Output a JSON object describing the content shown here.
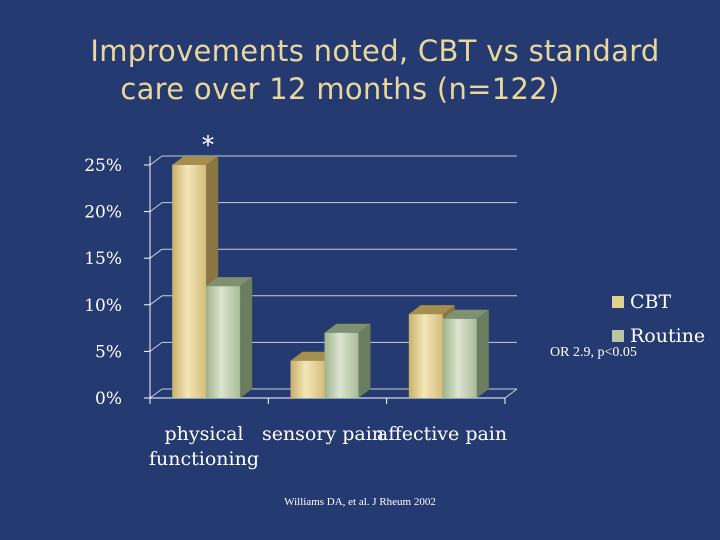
{
  "slide": {
    "title_line1": "Improvements noted, CBT vs standard",
    "title_line2": "care over 12 months (n=122)",
    "significance_marker": "*",
    "annotation": "OR 2.9, p<0.05",
    "citation": "Williams DA, et al. J Rheum 2002"
  },
  "chart_data": {
    "type": "bar",
    "title": "",
    "xlabel": "",
    "ylabel": "",
    "categories": [
      "physical functioning",
      "sensory pain",
      "affective pain"
    ],
    "category_lines": [
      [
        "physical",
        "functioning"
      ],
      [
        "sensory pain"
      ],
      [
        "affective pain"
      ]
    ],
    "series": [
      {
        "name": "CBT",
        "values": [
          25,
          4,
          9
        ],
        "color": "#e3cf8e"
      },
      {
        "name": "Routine",
        "values": [
          12,
          7,
          8.5
        ],
        "color": "#b7c7a6"
      }
    ],
    "ylim": [
      0,
      25
    ],
    "yticks": [
      0,
      5,
      10,
      15,
      20,
      25
    ],
    "ytick_labels": [
      "0%",
      "5%",
      "10%",
      "15%",
      "20%",
      "25%"
    ],
    "grid": true,
    "legend": "right",
    "style": "3d-bar"
  }
}
